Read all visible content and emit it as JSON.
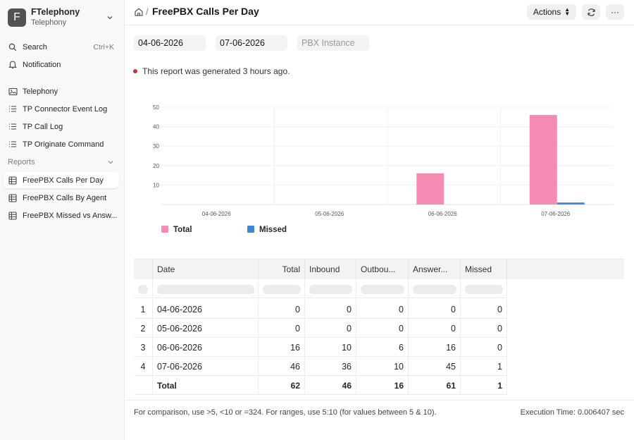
{
  "app": {
    "name": "FTelephony",
    "subtitle": "Telephony",
    "logo_letter": "F"
  },
  "sidebar": {
    "search_label": "Search",
    "search_shortcut": "Ctrl+K",
    "notification_label": "Notification",
    "items": [
      {
        "label": "Telephony",
        "icon": "image-icon"
      },
      {
        "label": "TP Connector Event Log",
        "icon": "list-icon"
      },
      {
        "label": "TP Call Log",
        "icon": "list-icon"
      },
      {
        "label": "TP Originate Command",
        "icon": "list-icon"
      }
    ],
    "reports_section": "Reports",
    "reports": [
      {
        "label": "FreePBX Calls Per Day",
        "icon": "table-icon",
        "active": true
      },
      {
        "label": "FreePBX Calls By Agent",
        "icon": "table-icon"
      },
      {
        "label": "FreePBX Missed vs Answ...",
        "icon": "table-icon"
      }
    ]
  },
  "header": {
    "title": "FreePBX Calls Per Day",
    "separator": "/",
    "actions_label": "Actions",
    "more_label": "···"
  },
  "filters": {
    "from_date": "04-06-2026",
    "to_date": "07-06-2026",
    "pbx_placeholder": "PBX Instance"
  },
  "report_note": "This report was generated 3 hours ago.",
  "chart_data": {
    "type": "bar",
    "categories": [
      "04-06-2026",
      "05-06-2026",
      "06-06-2026",
      "07-06-2026"
    ],
    "series": [
      {
        "name": "Total",
        "values": [
          0,
          0,
          16,
          46
        ],
        "color": "#f58bb2"
      },
      {
        "name": "Missed",
        "values": [
          0,
          0,
          0,
          1
        ],
        "color": "#3b86d6"
      }
    ],
    "y_ticks": [
      10,
      20,
      30,
      40,
      50
    ],
    "ylim": [
      0,
      50
    ],
    "grid": true,
    "legend_position": "bottom-left"
  },
  "table": {
    "columns": [
      "Date",
      "Total",
      "Inbound",
      "Outbou...",
      "Answer...",
      "Missed"
    ],
    "rows": [
      {
        "index": "1",
        "date": "04-06-2026",
        "total": "0",
        "inbound": "0",
        "outbound": "0",
        "answered": "0",
        "missed": "0"
      },
      {
        "index": "2",
        "date": "05-06-2026",
        "total": "0",
        "inbound": "0",
        "outbound": "0",
        "answered": "0",
        "missed": "0"
      },
      {
        "index": "3",
        "date": "06-06-2026",
        "total": "16",
        "inbound": "10",
        "outbound": "6",
        "answered": "16",
        "missed": "0"
      },
      {
        "index": "4",
        "date": "07-06-2026",
        "total": "46",
        "inbound": "36",
        "outbound": "10",
        "answered": "45",
        "missed": "1"
      }
    ],
    "totals": {
      "label": "Total",
      "total": "62",
      "inbound": "46",
      "outbound": "16",
      "answered": "61",
      "missed": "1"
    }
  },
  "footer": {
    "hint": "For comparison, use >5, <10 or =324. For ranges, use 5:10 (for values between 5 & 10).",
    "execution_time": "Execution Time: 0.006407 sec"
  }
}
